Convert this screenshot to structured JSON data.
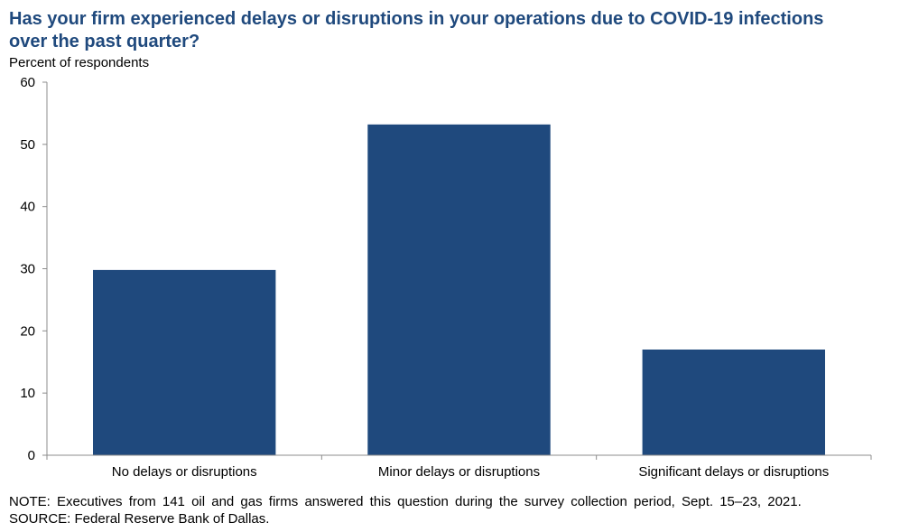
{
  "title_lines": [
    "Has your firm experienced delays or disruptions in your operations due to COVID-19 infections",
    "over the past quarter?"
  ],
  "ylabel": "Percent of respondents",
  "note": "NOTE: Executives from 141 oil and gas firms answered this question during the survey collection period, Sept. 15–23, 2021.",
  "source": "SOURCE: Federal Reserve Bank of Dallas.",
  "colors": {
    "bar": "#1f497d",
    "title": "#1f497d"
  },
  "chart_data": {
    "type": "bar",
    "categories": [
      "No delays or disruptions",
      "Minor delays or disruptions",
      "Significant delays or disruptions"
    ],
    "values": [
      29.8,
      53.2,
      17.0
    ],
    "title": "Has your firm experienced delays or disruptions in your operations due to COVID-19 infections over the past quarter?",
    "xlabel": "",
    "ylabel": "Percent of respondents",
    "ylim": [
      0,
      60
    ],
    "yticks": [
      0,
      10,
      20,
      30,
      40,
      50,
      60
    ],
    "grid": false,
    "legend": "none"
  }
}
